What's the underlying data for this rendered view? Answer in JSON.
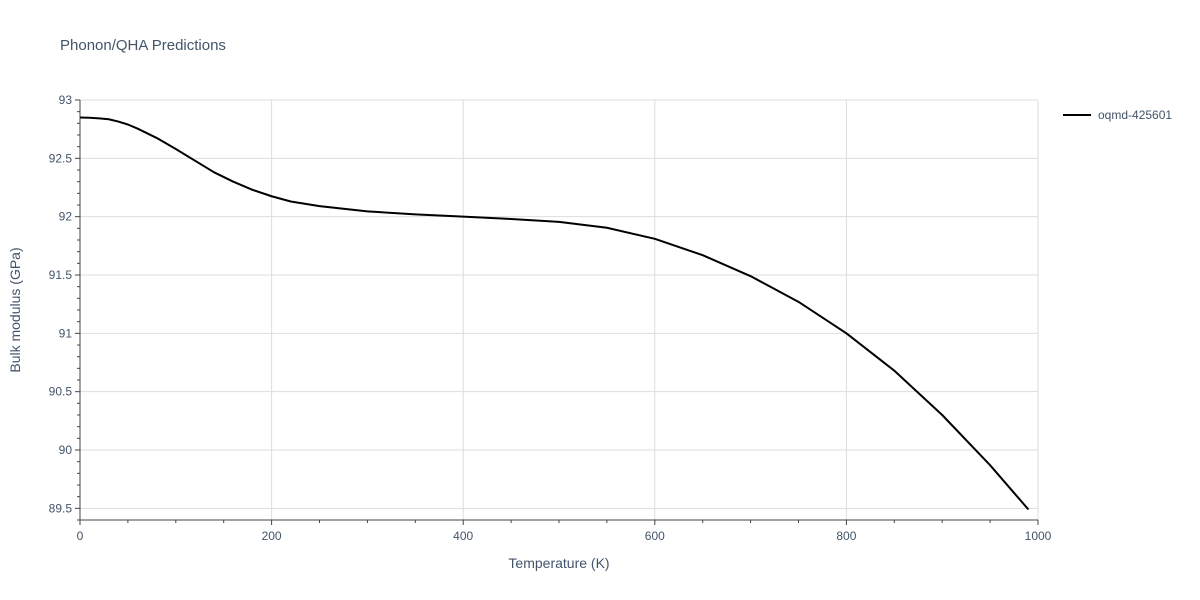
{
  "chart_data": {
    "type": "line",
    "title": "Phonon/QHA Predictions",
    "xlabel": "Temperature (K)",
    "ylabel": "Bulk modulus (GPa)",
    "xlim": [
      0,
      1000
    ],
    "ylim": [
      89.4,
      93.0
    ],
    "x_ticks": [
      0,
      200,
      400,
      600,
      800,
      1000
    ],
    "y_ticks": [
      89.5,
      90,
      90.5,
      91,
      91.5,
      92,
      92.5,
      93
    ],
    "grid": true,
    "legend_position": "top-right",
    "series": [
      {
        "name": "oqmd-425601",
        "color": "#000000",
        "x": [
          0,
          10,
          20,
          30,
          40,
          50,
          60,
          80,
          100,
          120,
          140,
          160,
          180,
          200,
          220,
          250,
          300,
          350,
          400,
          450,
          500,
          550,
          600,
          650,
          700,
          750,
          800,
          850,
          900,
          950,
          990
        ],
        "y": [
          92.85,
          92.848,
          92.843,
          92.835,
          92.815,
          92.79,
          92.755,
          92.675,
          92.58,
          92.48,
          92.38,
          92.3,
          92.23,
          92.175,
          92.13,
          92.09,
          92.045,
          92.02,
          92.0,
          91.98,
          91.955,
          91.905,
          91.81,
          91.67,
          91.49,
          91.27,
          91.0,
          90.68,
          90.3,
          89.87,
          89.49
        ]
      }
    ]
  }
}
